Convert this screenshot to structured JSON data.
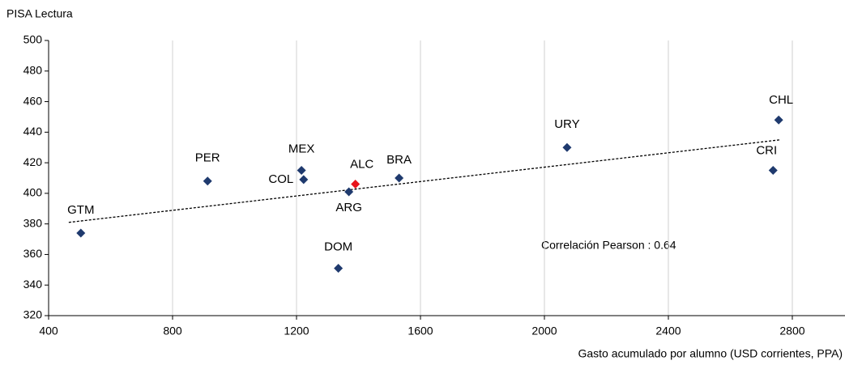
{
  "chart_data": {
    "type": "scatter",
    "y_label": "PISA Lectura",
    "x_label": "Gasto acumulado por alumno (USD corrientes, PPA)",
    "annotation": "Correlación Pearson : 0.64",
    "labels": [
      "GTM",
      "PER",
      "MEX",
      "COL",
      "ALC",
      "ARG",
      "BRA",
      "DOM",
      "URY",
      "CHL",
      "CRI"
    ],
    "x": [
      504,
      913,
      1216,
      1223,
      1390,
      1369,
      1531,
      1335,
      2073,
      2756,
      2738
    ],
    "y": [
      374,
      408,
      415,
      409,
      406,
      401,
      410,
      351,
      430,
      448,
      415
    ],
    "colors": [
      "#1f3a6e",
      "#1f3a6e",
      "#1f3a6e",
      "#1f3a6e",
      "#e8141b",
      "#1f3a6e",
      "#1f3a6e",
      "#1f3a6e",
      "#1f3a6e",
      "#1f3a6e",
      "#1f3a6e"
    ],
    "trendline": {
      "x": [
        465,
        2760
      ],
      "y": [
        381,
        435
      ]
    },
    "xlim": [
      400,
      2970
    ],
    "xticks": [
      400,
      800,
      1200,
      1600,
      2000,
      2400,
      2800
    ],
    "ylim": [
      320,
      500
    ],
    "yticks": [
      320,
      340,
      360,
      380,
      400,
      420,
      440,
      460,
      480,
      500
    ],
    "grid": "x"
  }
}
